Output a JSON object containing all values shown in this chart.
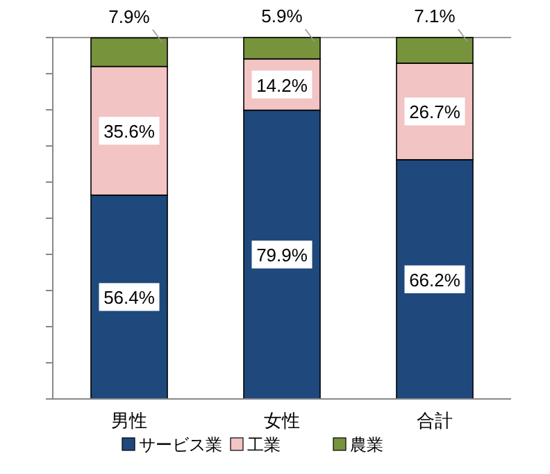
{
  "chart_data": {
    "type": "bar",
    "stacked": true,
    "categories": [
      "男性",
      "女性",
      "合計"
    ],
    "series": [
      {
        "name": "サービス業",
        "color": "#1f497d",
        "values": [
          56.4,
          79.9,
          66.2
        ],
        "value_labels": [
          "56.4%",
          "79.9%",
          "66.2%"
        ]
      },
      {
        "name": "工業",
        "color": "#f2c4c4",
        "values": [
          35.6,
          14.2,
          26.7
        ],
        "value_labels": [
          "35.6%",
          "14.2%",
          "26.7%"
        ]
      },
      {
        "name": "農業",
        "color": "#77933c",
        "values": [
          7.9,
          5.9,
          7.1
        ],
        "value_labels": [
          "7.9%",
          "5.9%",
          "7.1%"
        ]
      }
    ],
    "tick_labels": "x",
    "legend": "bottom"
  }
}
